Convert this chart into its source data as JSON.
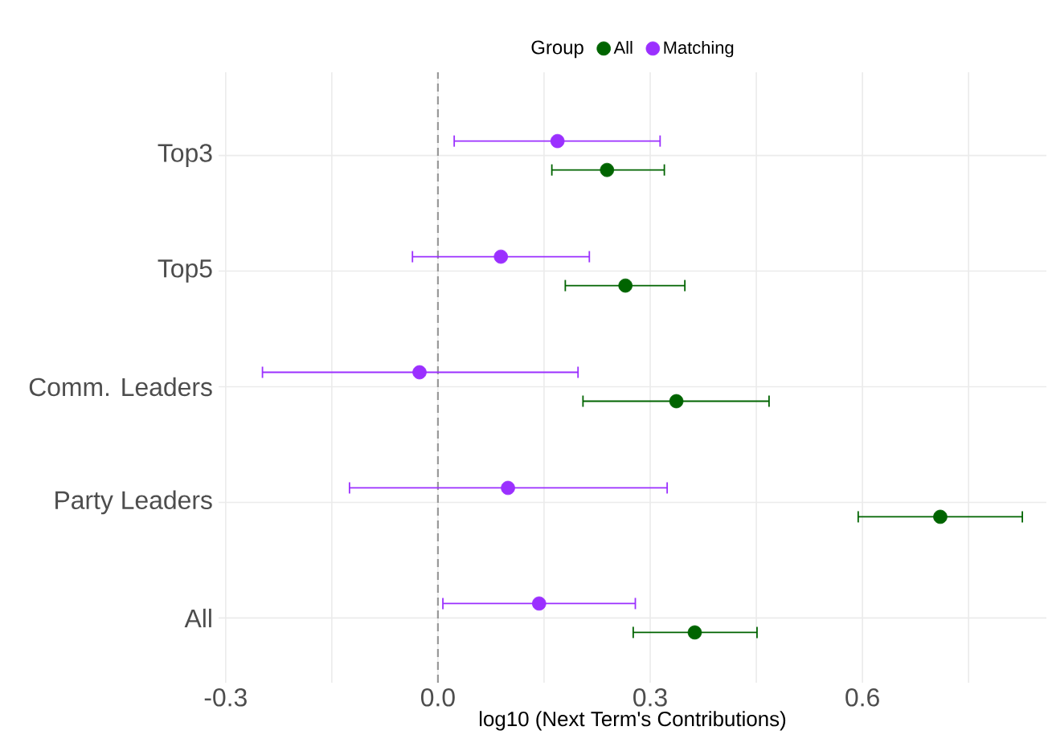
{
  "chart_data": {
    "type": "scatter",
    "orientation": "horizontal",
    "xlabel": "log10 (Next Term's Contributions)",
    "legend_title": "Group",
    "categories": [
      "Top3",
      "Top5",
      "Comm. Leaders",
      "Party Leaders",
      "All"
    ],
    "series": [
      {
        "name": "All",
        "color": "#006400",
        "values": [
          0.239,
          0.265,
          0.337,
          0.71,
          0.363
        ],
        "errors": [
          [
            0.161,
            0.32
          ],
          [
            0.18,
            0.349
          ],
          [
            0.205,
            0.468
          ],
          [
            0.594,
            0.826
          ],
          [
            0.276,
            0.451
          ]
        ]
      },
      {
        "name": "Matching",
        "color": "#9b30ff",
        "values": [
          0.169,
          0.089,
          -0.026,
          0.099,
          0.143
        ],
        "errors": [
          [
            0.023,
            0.314
          ],
          [
            -0.036,
            0.214
          ],
          [
            -0.248,
            0.198
          ],
          [
            -0.125,
            0.324
          ],
          [
            0.007,
            0.279
          ]
        ]
      }
    ],
    "xlim": [
      -0.31,
      0.86
    ],
    "xticks": [
      -0.3,
      {
        "value": -0.15,
        "label": null
      },
      {
        "value": 0,
        "label": "0.0"
      },
      {
        "value": 0.15,
        "label": null
      },
      0.3,
      {
        "value": 0.45,
        "label": null
      },
      0.6,
      {
        "value": 0.75,
        "label": null
      }
    ],
    "ref_lines": [
      {
        "axis": "x",
        "value": 0,
        "color": "#999999",
        "line_style": "dashed"
      }
    ],
    "grid": true,
    "legend": "top",
    "marker": "circle"
  }
}
